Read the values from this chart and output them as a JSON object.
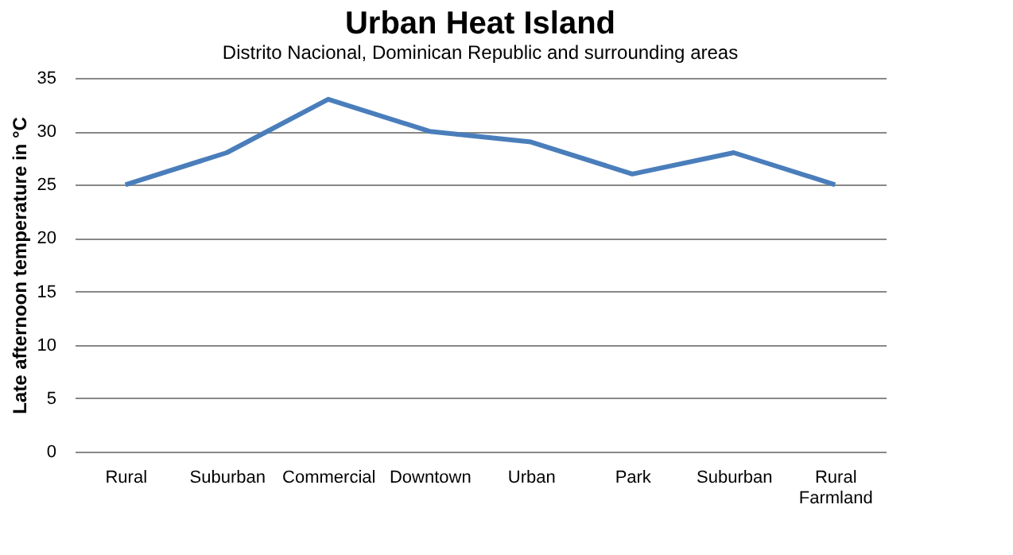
{
  "chart_data": {
    "type": "line",
    "title": "Urban Heat Island",
    "subtitle": "Distrito Nacional, Dominican Republic and surrounding areas",
    "ylabel": "Late afternoon temperature in °C",
    "categories": [
      "Rural",
      "Suburban",
      "Commercial",
      "Downtown",
      "Urban",
      "Park",
      "Suburban",
      "Rural Farmland"
    ],
    "series": [
      {
        "color": "#4a7ebb",
        "values": [
          25,
          28,
          33,
          30,
          29,
          26,
          28,
          25
        ]
      }
    ],
    "ylim": [
      0,
      35
    ],
    "yticks": [
      0,
      5,
      10,
      15,
      20,
      25,
      30,
      35
    ],
    "grid": "y",
    "legend": false,
    "marker": "none",
    "line_style": "solid"
  }
}
